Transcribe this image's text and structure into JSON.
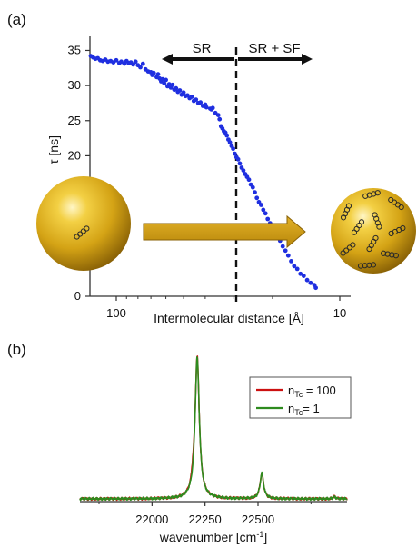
{
  "panels": {
    "a": {
      "label": "(a)"
    },
    "b": {
      "label": "(b)"
    }
  },
  "colors": {
    "scatter_points": "#1f2fe0",
    "sphere_gold": "#d4a315",
    "arrow_gold": "#c9960c",
    "red_series": "#cc1111",
    "green_series": "#2e8b1e",
    "axis": "#333333"
  },
  "chart_data": [
    {
      "type": "scatter",
      "panel": "a",
      "title": "",
      "xlabel": "Intermolecular distance [Å]",
      "ylabel": "τ  [ns]",
      "x_scale": "log",
      "x_reversed": true,
      "x_ticks": [
        100,
        10
      ],
      "y_ticks": [
        0,
        5,
        10,
        15,
        20,
        25,
        30,
        35
      ],
      "ylim": [
        0,
        37
      ],
      "annotations": {
        "left_region": "SR",
        "right_region": "SR + SF",
        "divider_x": 34
      },
      "illustrations": [
        "sparse-nanoparticle-illustration",
        "dense-nanoparticle-illustration",
        "gold-transition-arrow"
      ],
      "points": [
        [
          130,
          34.2
        ],
        [
          127,
          34.0
        ],
        [
          124,
          33.8
        ],
        [
          121,
          33.9
        ],
        [
          118,
          33.6
        ],
        [
          115,
          33.5
        ],
        [
          112,
          33.7
        ],
        [
          109,
          33.4
        ],
        [
          106,
          33.5
        ],
        [
          103,
          33.3
        ],
        [
          100,
          33.6
        ],
        [
          97,
          33.2
        ],
        [
          95,
          33.4
        ],
        [
          92,
          33.1
        ],
        [
          90,
          33.5
        ],
        [
          88,
          33.2
        ],
        [
          86,
          33.3
        ],
        [
          84,
          33.0
        ],
        [
          82,
          33.4
        ],
        [
          80,
          32.9
        ],
        [
          78,
          32.6
        ],
        [
          76,
          33.1
        ],
        [
          74,
          32.3
        ],
        [
          72,
          32.0
        ],
        [
          70,
          31.9
        ],
        [
          69,
          31.5
        ],
        [
          68,
          31.8
        ],
        [
          66,
          31.2
        ],
        [
          65,
          31.6
        ],
        [
          64,
          31.0
        ],
        [
          63,
          30.6
        ],
        [
          62,
          30.9
        ],
        [
          61,
          30.3
        ],
        [
          60,
          30.8
        ],
        [
          59,
          29.9
        ],
        [
          58,
          30.2
        ],
        [
          57,
          29.7
        ],
        [
          56,
          30.1
        ],
        [
          55,
          29.4
        ],
        [
          54,
          29.6
        ],
        [
          53,
          29.1
        ],
        [
          52,
          29.3
        ],
        [
          51,
          28.7
        ],
        [
          50,
          29.0
        ],
        [
          49,
          28.5
        ],
        [
          48,
          28.6
        ],
        [
          47,
          28.2
        ],
        [
          46,
          28.4
        ],
        [
          45,
          27.8
        ],
        [
          44,
          28.0
        ],
        [
          43,
          27.5
        ],
        [
          42,
          27.6
        ],
        [
          41,
          27.1
        ],
        [
          40,
          27.3
        ],
        [
          39.5,
          26.9
        ],
        [
          38,
          26.7
        ],
        [
          37.5,
          26.6
        ],
        [
          37,
          26.8
        ],
        [
          36,
          26.1
        ],
        [
          35,
          25.8
        ],
        [
          34.5,
          25.2
        ],
        [
          34,
          24.2
        ],
        [
          33.5,
          23.9
        ],
        [
          33,
          23.5
        ],
        [
          32.5,
          23.3
        ],
        [
          32,
          22.9
        ],
        [
          31.5,
          22.3
        ],
        [
          31,
          21.9
        ],
        [
          30.5,
          21.4
        ],
        [
          30,
          21.0
        ],
        [
          29.5,
          20.3
        ],
        [
          29,
          19.8
        ],
        [
          28.5,
          19.5
        ],
        [
          28,
          18.9
        ],
        [
          27.5,
          18.3
        ],
        [
          27,
          17.9
        ],
        [
          26.5,
          17.4
        ],
        [
          26,
          17.0
        ],
        [
          25.5,
          16.6
        ],
        [
          25,
          15.9
        ],
        [
          24.5,
          15.5
        ],
        [
          24,
          14.8
        ],
        [
          23.5,
          14.0
        ],
        [
          23,
          13.4
        ],
        [
          22.5,
          13.0
        ],
        [
          22,
          12.3
        ],
        [
          21.5,
          11.8
        ],
        [
          21,
          11.0
        ],
        [
          20.5,
          10.4
        ],
        [
          20,
          9.9
        ],
        [
          19.5,
          9.2
        ],
        [
          19,
          8.5
        ],
        [
          18.5,
          7.9
        ],
        [
          18,
          7.1
        ],
        [
          17.5,
          6.5
        ],
        [
          17,
          5.8
        ],
        [
          16.5,
          5.0
        ],
        [
          16,
          4.3
        ],
        [
          15.5,
          3.9
        ],
        [
          15,
          3.2
        ],
        [
          14.5,
          2.9
        ],
        [
          14,
          2.3
        ],
        [
          13.5,
          1.9
        ],
        [
          13,
          1.6
        ],
        [
          12.8,
          1.2
        ]
      ]
    },
    {
      "type": "line",
      "panel": "b",
      "title": "",
      "xlabel": "wavenumber [cm⁻¹]",
      "ylabel": "",
      "xlim": [
        21660,
        22920
      ],
      "x_ticks": [
        22000,
        22250,
        22500
      ],
      "ylim": [
        0,
        1.05
      ],
      "legend_position": "top-right",
      "series": [
        {
          "name": "n_Tc = 100",
          "label_base": "n",
          "label_sub": "Tc",
          "label_rest": " = 100",
          "color": "#cc1111"
        },
        {
          "name": "n_Tc = 1",
          "label_base": "n",
          "label_sub": "Tc",
          "label_rest": "= 1",
          "color": "#2e8b1e"
        }
      ],
      "peaks": [
        {
          "center": 22213,
          "height": 1.0,
          "width": 12,
          "shoulder": {
            "center": 22193,
            "height": 0.05,
            "width": 8
          }
        },
        {
          "center": 22518,
          "height": 0.18,
          "width": 10
        },
        {
          "center": 22860,
          "height": 0.015,
          "width": 8
        }
      ]
    }
  ]
}
